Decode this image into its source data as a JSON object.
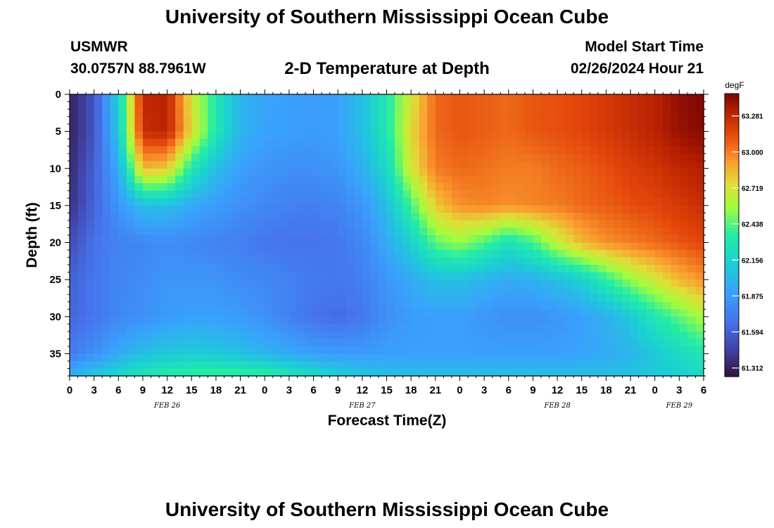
{
  "header": {
    "title": "University of Southern Mississippi Ocean Cube",
    "station": "USMWR",
    "coords": "30.0757N  88.7961W",
    "subtitle": "2-D Temperature at Depth",
    "model_start_label": "Model Start Time",
    "model_start_time": "02/26/2024 Hour 21"
  },
  "footer": {
    "title": "University of Southern Mississippi Ocean Cube"
  },
  "chart_data": {
    "type": "heatmap",
    "xlabel": "Forecast Time(Z)",
    "ylabel": "Depth (ft)",
    "x_tick_labels": [
      "0",
      "3",
      "6",
      "9",
      "12",
      "15",
      "18",
      "21",
      "0",
      "3",
      "6",
      "9",
      "12",
      "15",
      "18",
      "21",
      "0",
      "3",
      "6",
      "9",
      "12",
      "15",
      "18",
      "21",
      "0",
      "3",
      "6"
    ],
    "date_labels": [
      {
        "label": "FEB 26",
        "hour_index": 4
      },
      {
        "label": "FEB 27",
        "hour_index": 12
      },
      {
        "label": "FEB 28",
        "hour_index": 20
      },
      {
        "label": "FEB 29",
        "hour_index": 25
      }
    ],
    "y_ticks": [
      0,
      5,
      10,
      15,
      20,
      25,
      30,
      35
    ],
    "ylim": [
      0,
      38
    ],
    "xlim_hours": [
      0,
      78
    ],
    "colorbar": {
      "unit": "degF",
      "ticks": [
        63.281,
        63.0,
        62.719,
        62.438,
        62.156,
        61.875,
        61.594,
        61.312
      ],
      "range": [
        61.25,
        63.45
      ]
    },
    "grid_hours": [
      0,
      3,
      6,
      9,
      12,
      15,
      18,
      21,
      24,
      27,
      30,
      33,
      36,
      39,
      42,
      45,
      48,
      51,
      54,
      57,
      60,
      63,
      66,
      69,
      72,
      75,
      78
    ],
    "grid_depths_ft": [
      0,
      5,
      10,
      15,
      20,
      25,
      30,
      35,
      38
    ],
    "values_degF": [
      [
        61.32,
        61.55,
        62.15,
        63.28,
        63.3,
        62.7,
        62.3,
        62.0,
        61.92,
        61.9,
        61.88,
        61.9,
        62.05,
        62.3,
        62.7,
        63.05,
        63.1,
        63.08,
        63.05,
        63.1,
        63.12,
        63.15,
        63.2,
        63.25,
        63.3,
        63.4,
        63.44
      ],
      [
        61.32,
        61.55,
        62.1,
        63.25,
        63.3,
        62.75,
        62.3,
        62.0,
        61.92,
        61.9,
        61.88,
        61.9,
        62.05,
        62.3,
        62.75,
        63.05,
        63.1,
        63.08,
        63.05,
        63.1,
        63.12,
        63.15,
        63.2,
        63.25,
        63.3,
        63.38,
        63.42
      ],
      [
        61.35,
        61.6,
        61.95,
        62.85,
        62.8,
        62.3,
        62.05,
        61.9,
        61.85,
        61.82,
        61.82,
        61.85,
        61.98,
        62.2,
        62.7,
        63.0,
        63.05,
        63.03,
        63.0,
        63.0,
        63.05,
        63.08,
        63.12,
        63.18,
        63.22,
        63.28,
        63.32
      ],
      [
        61.38,
        61.62,
        61.85,
        62.05,
        62.05,
        61.95,
        61.88,
        61.82,
        61.78,
        61.75,
        61.74,
        61.76,
        61.85,
        62.05,
        62.4,
        62.8,
        62.95,
        62.98,
        62.95,
        62.98,
        63.0,
        63.05,
        63.08,
        63.12,
        63.15,
        63.2,
        63.25
      ],
      [
        61.5,
        61.68,
        61.75,
        61.78,
        61.8,
        61.78,
        61.76,
        61.74,
        61.7,
        61.68,
        61.68,
        61.7,
        61.78,
        61.95,
        62.15,
        62.45,
        62.55,
        62.42,
        62.25,
        62.4,
        62.65,
        62.85,
        62.95,
        63.0,
        63.05,
        63.1,
        63.15
      ],
      [
        61.6,
        61.7,
        61.78,
        61.8,
        61.85,
        61.85,
        61.84,
        61.8,
        61.78,
        61.75,
        61.72,
        61.7,
        61.74,
        61.85,
        61.95,
        62.05,
        62.05,
        62.0,
        61.95,
        61.98,
        62.05,
        62.15,
        62.35,
        62.55,
        62.7,
        62.85,
        62.95
      ],
      [
        61.62,
        61.7,
        61.78,
        61.82,
        61.88,
        61.9,
        61.9,
        61.88,
        61.82,
        61.75,
        61.68,
        61.65,
        61.7,
        61.82,
        61.88,
        61.9,
        61.9,
        61.85,
        61.82,
        61.82,
        61.85,
        61.9,
        61.98,
        62.1,
        62.3,
        62.45,
        62.6
      ],
      [
        61.72,
        61.82,
        61.95,
        62.05,
        62.1,
        62.12,
        62.1,
        62.05,
        62.0,
        61.95,
        61.9,
        61.88,
        61.88,
        61.9,
        61.9,
        61.9,
        61.9,
        61.9,
        61.9,
        61.9,
        61.9,
        61.92,
        61.95,
        62.0,
        62.1,
        62.2,
        62.3
      ],
      [
        62.0,
        62.1,
        62.2,
        62.3,
        62.35,
        62.38,
        62.4,
        62.4,
        62.38,
        62.3,
        62.22,
        62.15,
        62.1,
        62.05,
        62.05,
        62.05,
        62.05,
        62.05,
        62.05,
        62.05,
        62.05,
        62.05,
        62.05,
        62.08,
        62.1,
        62.15,
        62.2
      ]
    ]
  }
}
